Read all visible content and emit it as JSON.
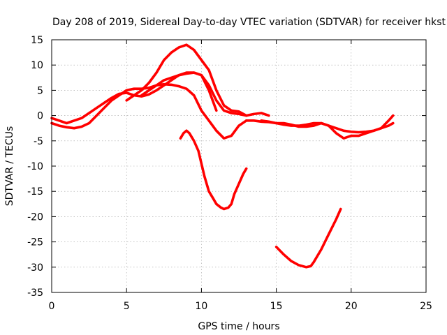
{
  "chart_data": {
    "type": "line",
    "title": "Day 208 of 2019, Sidereal Day-to-day VTEC variation (SDTVAR) for receiver hkst",
    "xlabel": "GPS time / hours",
    "ylabel": "SDTVAR / TECUs",
    "xlim": [
      0,
      25
    ],
    "ylim": [
      -35,
      15
    ],
    "xticks": [
      "0",
      "5",
      "10",
      "15",
      "20",
      "25"
    ],
    "yticks": [
      "15",
      "10",
      "5",
      "0",
      "-5",
      "-10",
      "-15",
      "-20",
      "-25",
      "-30",
      "-35"
    ],
    "grid": true,
    "series_color": "#ff0000",
    "series": [
      {
        "name": "trace-1",
        "x": [
          0,
          0.5,
          1,
          1.5,
          2,
          2.5,
          3,
          3.5,
          4,
          4.5,
          5,
          5.5,
          6,
          6.5,
          7,
          7.5,
          8,
          8.5,
          9,
          9.5,
          10,
          10.5,
          11,
          11.5,
          12,
          12.5,
          13
        ],
        "y": [
          -1.5,
          -2,
          -2.3,
          -2.5,
          -2.2,
          -1.5,
          0,
          1.5,
          3,
          4,
          5,
          5.3,
          5.3,
          5.5,
          6,
          6.2,
          6.1,
          5.8,
          5.3,
          4,
          1,
          -1,
          -3,
          -4.5,
          -4,
          -2,
          -1
        ]
      },
      {
        "name": "trace-2",
        "x": [
          0,
          0.5,
          1,
          1.5,
          2,
          2.5,
          3,
          3.5,
          4,
          4.5,
          5,
          5.5,
          6,
          6.5,
          7,
          7.5,
          8,
          8.5,
          9,
          9.5,
          10,
          10.5,
          11,
          11.5,
          12,
          12.5,
          13
        ],
        "y": [
          -0.5,
          -1,
          -1.5,
          -1,
          -0.5,
          0.5,
          1.5,
          2.5,
          3.5,
          4.3,
          4.5,
          4,
          3.8,
          4.2,
          5,
          6,
          7,
          8,
          8.5,
          8.5,
          8,
          6,
          3,
          1,
          0.5,
          0.3,
          0
        ]
      },
      {
        "name": "trace-3",
        "x": [
          5,
          5.5,
          6,
          6.5,
          7,
          7.5,
          8,
          8.5,
          9,
          9.5,
          10,
          10.5,
          11,
          11.5,
          12,
          12.5,
          13,
          13.5,
          14,
          14.5
        ],
        "y": [
          3,
          4,
          5,
          6.5,
          8.5,
          11,
          12.5,
          13.5,
          14,
          13,
          11,
          9,
          5,
          2,
          1,
          0.8,
          0,
          0.3,
          0.5,
          0
        ]
      },
      {
        "name": "trace-4",
        "x": [
          6,
          6.5,
          7,
          7.5,
          8,
          8.5,
          9,
          9.5,
          10,
          10.5,
          11
        ],
        "y": [
          4,
          5,
          6,
          7,
          7.5,
          8,
          8.3,
          8.5,
          8,
          5,
          1
        ]
      },
      {
        "name": "trace-5",
        "x": [
          13,
          13.5,
          14,
          14.5,
          15,
          15.5,
          16,
          16.5,
          17,
          17.5,
          18,
          18.5,
          19,
          19.5,
          20,
          20.5,
          21,
          21.5,
          22,
          22.5,
          22.8
        ],
        "y": [
          -1,
          -1,
          -1.2,
          -1.3,
          -1.5,
          -1.8,
          -2,
          -2,
          -1.8,
          -1.5,
          -1.5,
          -2,
          -2.5,
          -3,
          -3.2,
          -3.3,
          -3.2,
          -3,
          -2.5,
          -2,
          -1.5
        ]
      },
      {
        "name": "trace-6",
        "x": [
          14,
          14.5,
          15,
          15.5,
          16,
          16.5,
          17,
          17.5,
          18,
          18.5,
          19,
          19.5,
          20,
          20.5,
          21,
          21.5,
          22,
          22.5,
          22.8
        ],
        "y": [
          -1,
          -1.2,
          -1.5,
          -1.5,
          -1.8,
          -2.2,
          -2.2,
          -2,
          -1.5,
          -2,
          -3.5,
          -4.5,
          -4,
          -4,
          -3.5,
          -3,
          -2.5,
          -1,
          0
        ]
      },
      {
        "name": "trace-7",
        "x": [
          8.6,
          8.8,
          9,
          9.2,
          9.5,
          9.8,
          10,
          10.2,
          10.5,
          10.8,
          11,
          11.3,
          11.5,
          11.8,
          12,
          12.2,
          12.5,
          12.8,
          13
        ],
        "y": [
          -4.5,
          -3.5,
          -3,
          -3.5,
          -5,
          -7,
          -9.5,
          -12,
          -15,
          -16.5,
          -17.5,
          -18.2,
          -18.5,
          -18.2,
          -17.5,
          -15.5,
          -13.5,
          -11.5,
          -10.5
        ]
      },
      {
        "name": "trace-8",
        "x": [
          15,
          15.5,
          16,
          16.5,
          17,
          17.3,
          17.5,
          18,
          18.5,
          19,
          19.3
        ],
        "y": [
          -26,
          -27.5,
          -28.8,
          -29.6,
          -30,
          -29.8,
          -29,
          -26.5,
          -23.5,
          -20.5,
          -18.5
        ]
      }
    ]
  }
}
